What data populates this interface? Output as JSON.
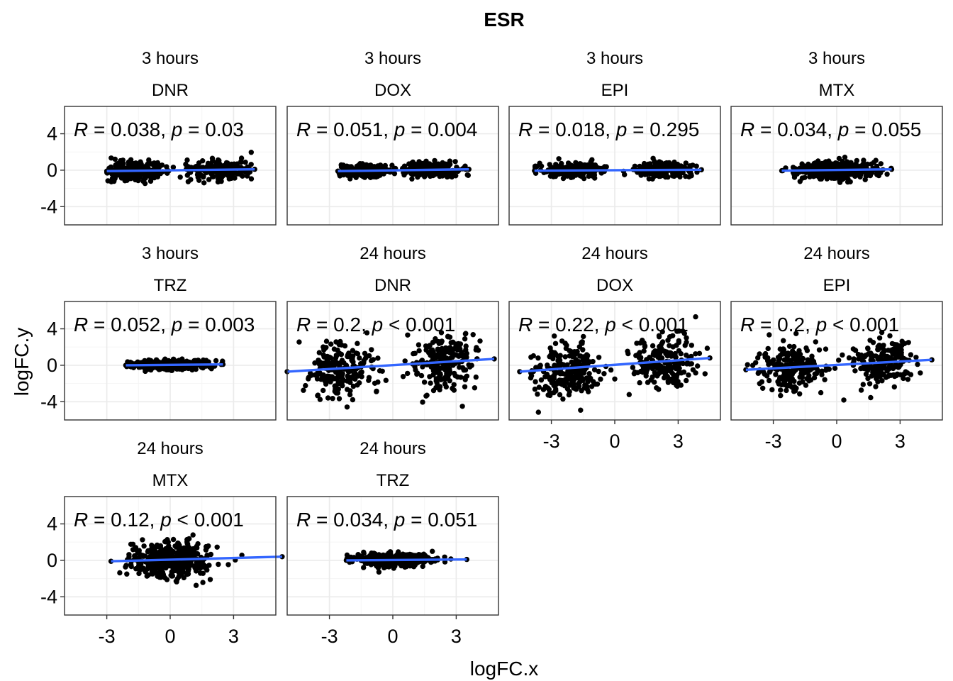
{
  "chart_data": {
    "type": "scatter",
    "title": "ESR",
    "xlabel": "logFC.x",
    "ylabel": "logFC.y",
    "xlim": [
      -5,
      5
    ],
    "ylim": [
      -6,
      7
    ],
    "x_ticks": [
      -3,
      0,
      3
    ],
    "y_ticks": [
      -4,
      0,
      4
    ],
    "grid": true,
    "fit_line_color": "#3366ff",
    "point_color": "#000000",
    "panels": [
      {
        "time": "3 hours",
        "drug": "DNR",
        "annotation": {
          "r": "0.038",
          "p_op": "=",
          "p": "0.03"
        },
        "x_range": [
          -3,
          4.0
        ],
        "x_gap": [
          -0.8,
          0.8
        ],
        "x_spread": 1.1,
        "y_spread": 0.55,
        "fit": {
          "x0": -3,
          "y0": -0.1,
          "x1": 4.0,
          "y1": 0.1
        }
      },
      {
        "time": "3 hours",
        "drug": "DOX",
        "annotation": {
          "r": "0.051",
          "p_op": "=",
          "p": "0.004"
        },
        "x_range": [
          -2.6,
          3.6
        ],
        "x_gap": [
          -0.5,
          0.5
        ],
        "x_spread": 1.0,
        "y_spread": 0.4,
        "fit": {
          "x0": -2.6,
          "y0": -0.1,
          "x1": 3.6,
          "y1": 0.1
        }
      },
      {
        "time": "3 hours",
        "drug": "EPI",
        "annotation": {
          "r": "0.018",
          "p_op": "=",
          "p": "0.295"
        },
        "x_range": [
          -3.8,
          4.1
        ],
        "x_gap": [
          -0.7,
          0.7
        ],
        "x_spread": 1.1,
        "y_spread": 0.4,
        "fit": {
          "x0": -3.8,
          "y0": -0.05,
          "x1": 4.1,
          "y1": 0.05
        }
      },
      {
        "time": "3 hours",
        "drug": "MTX",
        "annotation": {
          "r": "0.034",
          "p_op": "=",
          "p": "0.055"
        },
        "x_range": [
          -2.6,
          2.6
        ],
        "x_gap": [
          0,
          0
        ],
        "x_spread": 0.9,
        "y_spread": 0.45,
        "fit": {
          "x0": -2.6,
          "y0": -0.05,
          "x1": 2.6,
          "y1": 0.1
        }
      },
      {
        "time": "3 hours",
        "drug": "TRZ",
        "annotation": {
          "r": "0.052",
          "p_op": "=",
          "p": "0.003"
        },
        "x_range": [
          -2.1,
          2.5
        ],
        "x_gap": [
          0,
          0
        ],
        "x_spread": 0.9,
        "y_spread": 0.25,
        "fit": {
          "x0": -2.1,
          "y0": 0.0,
          "x1": 2.5,
          "y1": 0.1
        }
      },
      {
        "time": "24 hours",
        "drug": "DNR",
        "annotation": {
          "r": "0.2",
          "p_op": "<",
          "p": "0.001"
        },
        "x_range": [
          -5,
          4.8
        ],
        "x_gap": [
          -0.4,
          0.4
        ],
        "x_spread": 1.2,
        "y_spread": 1.5,
        "fit": {
          "x0": -5,
          "y0": -0.7,
          "x1": 4.8,
          "y1": 0.7
        }
      },
      {
        "time": "24 hours",
        "drug": "DOX",
        "annotation": {
          "r": "0.22",
          "p_op": "<",
          "p": "0.001"
        },
        "x_range": [
          -4.5,
          4.5
        ],
        "x_gap": [
          -0.3,
          0.3
        ],
        "x_spread": 1.2,
        "y_spread": 1.5,
        "fit": {
          "x0": -4.5,
          "y0": -0.7,
          "x1": 4.5,
          "y1": 0.8
        }
      },
      {
        "time": "24 hours",
        "drug": "EPI",
        "annotation": {
          "r": "0.2",
          "p_op": "<",
          "p": "0.001"
        },
        "x_range": [
          -4.3,
          4.5
        ],
        "x_gap": [
          -0.3,
          0.3
        ],
        "x_spread": 1.2,
        "y_spread": 1.3,
        "fit": {
          "x0": -4.3,
          "y0": -0.5,
          "x1": 4.5,
          "y1": 0.6
        }
      },
      {
        "time": "24 hours",
        "drug": "MTX",
        "annotation": {
          "r": "0.12",
          "p_op": "<",
          "p": "0.001"
        },
        "x_range": [
          -2.8,
          5.3
        ],
        "x_gap": [
          0,
          0
        ],
        "x_spread": 1.0,
        "y_spread": 1.0,
        "fit": {
          "x0": -2.8,
          "y0": -0.1,
          "x1": 5.3,
          "y1": 0.4
        }
      },
      {
        "time": "24 hours",
        "drug": "TRZ",
        "annotation": {
          "r": "0.034",
          "p_op": "=",
          "p": "0.051"
        },
        "x_range": [
          -2.2,
          3.5
        ],
        "x_gap": [
          0,
          0
        ],
        "x_spread": 0.9,
        "y_spread": 0.35,
        "fit": {
          "x0": -2.2,
          "y0": 0.0,
          "x1": 3.5,
          "y1": 0.1
        }
      }
    ]
  }
}
